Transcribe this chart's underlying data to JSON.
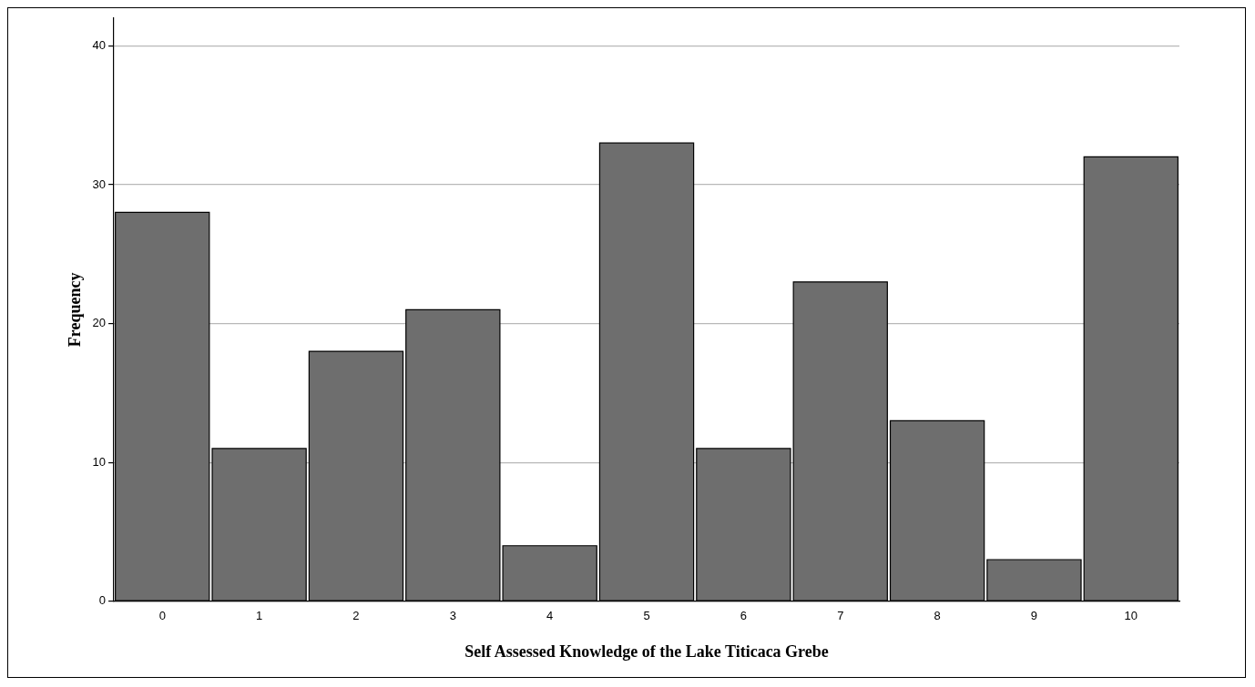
{
  "chart_data": {
    "type": "bar",
    "xlabel": "Self Assessed Knowledge of the Lake Titicaca Grebe",
    "ylabel": "Frequency",
    "categories": [
      "0",
      "1",
      "2",
      "3",
      "4",
      "5",
      "6",
      "7",
      "8",
      "9",
      "10"
    ],
    "values": [
      28,
      11,
      18,
      21,
      4,
      33,
      11,
      23,
      13,
      3,
      32
    ],
    "color": "#6e6e6e",
    "ylim": [
      0,
      42
    ],
    "yticks": [
      0,
      10,
      20,
      30,
      40
    ],
    "grid": "y",
    "legend": false
  }
}
